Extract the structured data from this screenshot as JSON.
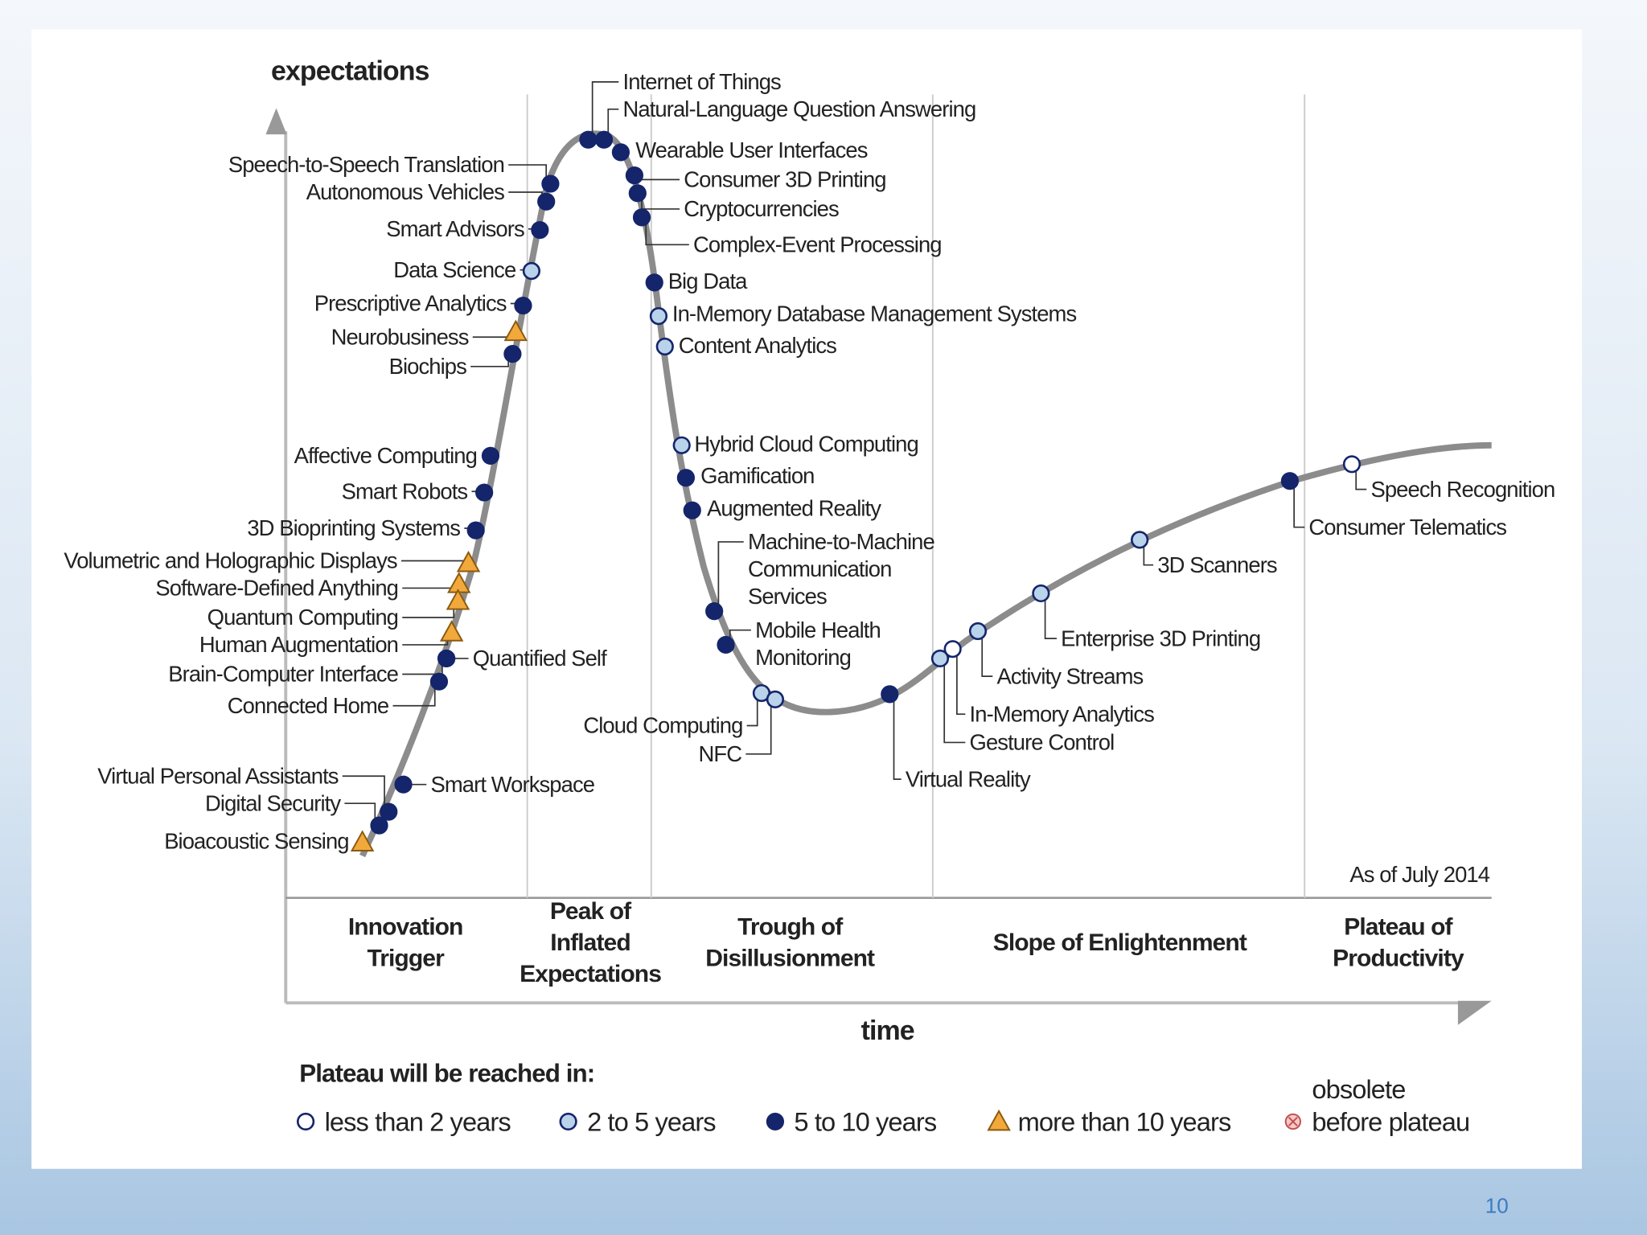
{
  "axis_labels": {
    "y": "expectations",
    "x": "time"
  },
  "note": "As of July 2014",
  "phases": [
    {
      "lines": [
        "Innovation",
        "Trigger"
      ]
    },
    {
      "lines": [
        "Peak of",
        "Inflated",
        "Expectations"
      ]
    },
    {
      "lines": [
        "Trough of",
        "Disillusionment"
      ]
    },
    {
      "lines": [
        "Slope of Enlightenment"
      ]
    },
    {
      "lines": [
        "Plateau of",
        "Productivity"
      ]
    }
  ],
  "technologies": [
    {
      "label": [
        "Internet of Things"
      ],
      "category": "5to10"
    },
    {
      "label": [
        "Natural-Language Question Answering"
      ],
      "category": "5to10"
    },
    {
      "label": [
        "Wearable User Interfaces"
      ],
      "category": "5to10"
    },
    {
      "label": [
        "Consumer 3D Printing"
      ],
      "category": "5to10"
    },
    {
      "label": [
        "Cryptocurrencies"
      ],
      "category": "5to10"
    },
    {
      "label": [
        "Complex-Event Processing"
      ],
      "category": "5to10"
    },
    {
      "label": [
        "Big Data"
      ],
      "category": "5to10"
    },
    {
      "label": [
        "In-Memory Database Management Systems"
      ],
      "category": "2to5"
    },
    {
      "label": [
        "Content Analytics"
      ],
      "category": "2to5"
    },
    {
      "label": [
        "Hybrid Cloud Computing"
      ],
      "category": "2to5"
    },
    {
      "label": [
        "Gamification"
      ],
      "category": "5to10"
    },
    {
      "label": [
        "Augmented Reality"
      ],
      "category": "5to10"
    },
    {
      "label": [
        "Machine-to-Machine",
        "Communication",
        "Services"
      ],
      "category": "5to10"
    },
    {
      "label": [
        "Mobile Health",
        "Monitoring"
      ],
      "category": "5to10"
    },
    {
      "label": [
        "Cloud Computing"
      ],
      "category": "2to5"
    },
    {
      "label": [
        "NFC"
      ],
      "category": "2to5"
    },
    {
      "label": [
        "Virtual Reality"
      ],
      "category": "5to10"
    },
    {
      "label": [
        "Gesture Control"
      ],
      "category": "2to5"
    },
    {
      "label": [
        "In-Memory Analytics"
      ],
      "category": "lt2"
    },
    {
      "label": [
        "Activity Streams"
      ],
      "category": "2to5"
    },
    {
      "label": [
        "Enterprise 3D Printing"
      ],
      "category": "2to5"
    },
    {
      "label": [
        "3D Scanners"
      ],
      "category": "2to5"
    },
    {
      "label": [
        "Consumer Telematics"
      ],
      "category": "5to10"
    },
    {
      "label": [
        "Speech Recognition"
      ],
      "category": "lt2"
    },
    {
      "label": [
        "Speech-to-Speech Translation"
      ],
      "category": "5to10"
    },
    {
      "label": [
        "Autonomous Vehicles"
      ],
      "category": "5to10"
    },
    {
      "label": [
        "Smart Advisors"
      ],
      "category": "5to10"
    },
    {
      "label": [
        "Data Science"
      ],
      "category": "2to5"
    },
    {
      "label": [
        "Prescriptive Analytics"
      ],
      "category": "5to10"
    },
    {
      "label": [
        "Neurobusiness"
      ],
      "category": "gt10"
    },
    {
      "label": [
        "Biochips"
      ],
      "category": "5to10"
    },
    {
      "label": [
        "Affective Computing"
      ],
      "category": "5to10"
    },
    {
      "label": [
        "Smart Robots"
      ],
      "category": "5to10"
    },
    {
      "label": [
        "3D Bioprinting Systems"
      ],
      "category": "5to10"
    },
    {
      "label": [
        "Volumetric and Holographic Displays"
      ],
      "category": "gt10"
    },
    {
      "label": [
        "Software-Defined Anything"
      ],
      "category": "gt10"
    },
    {
      "label": [
        "Quantum Computing"
      ],
      "category": "gt10"
    },
    {
      "label": [
        "Human Augmentation"
      ],
      "category": "gt10"
    },
    {
      "label": [
        "Brain-Computer Interface"
      ],
      "category": "5to10"
    },
    {
      "label": [
        "Connected Home"
      ],
      "category": "5to10"
    },
    {
      "label": [
        "Quantified Self"
      ],
      "category": "5to10"
    },
    {
      "label": [
        "Smart Workspace"
      ],
      "category": "5to10"
    },
    {
      "label": [
        "Virtual Personal Assistants"
      ],
      "category": "5to10"
    },
    {
      "label": [
        "Digital Security"
      ],
      "category": "5to10"
    },
    {
      "label": [
        "Bioacoustic Sensing"
      ],
      "category": "gt10"
    }
  ],
  "legend": {
    "title": "Plateau will be reached in:",
    "items": [
      {
        "marker": "lt2",
        "lines": [
          "less than 2 years"
        ]
      },
      {
        "marker": "2to5",
        "lines": [
          "2 to 5 years"
        ]
      },
      {
        "marker": "5to10",
        "lines": [
          "5 to 10 years"
        ]
      },
      {
        "marker": "gt10",
        "lines": [
          "more than 10 years"
        ]
      },
      {
        "marker": "obsolete",
        "lines": [
          "obsolete",
          "before plateau"
        ]
      }
    ]
  },
  "page_number": "10"
}
